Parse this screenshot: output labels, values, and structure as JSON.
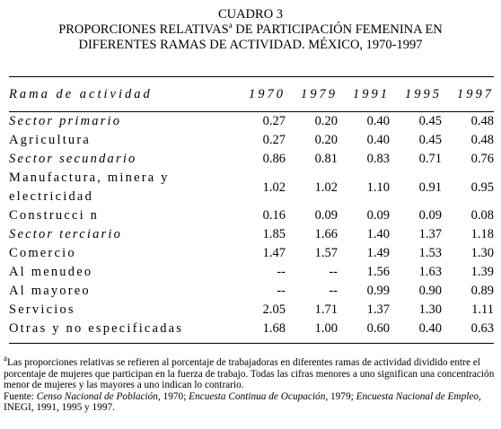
{
  "header": {
    "label": "CUADRO 3",
    "title_line2": [
      "PROPORCIONES RELATIVAS",
      "a",
      " DE PARTICIPACIÓN FEMENINA EN"
    ],
    "title_line3": "DIFERENTES RAMAS DE ACTIVIDAD. MÉXICO, 1970-1997"
  },
  "table": {
    "columns": [
      "Rama de actividad",
      "1970",
      "1979",
      "1991",
      "1995",
      "1997"
    ],
    "rows": [
      {
        "label": "Sector primario",
        "values": [
          "0.27",
          "0.20",
          "0.40",
          "0.45",
          "0.48"
        ]
      },
      {
        "label": "Agricultura",
        "values": [
          "0.27",
          "0.20",
          "0.40",
          "0.45",
          "0.48"
        ]
      },
      {
        "label": "Sector secundario",
        "values": [
          "0.86",
          "0.81",
          "0.83",
          "0.71",
          "0.76"
        ]
      },
      {
        "label": [
          "Manufactura, minera y",
          "electricidad"
        ],
        "values": [
          "1.02",
          "1.02",
          "1.10",
          "0.91",
          "0.95"
        ]
      },
      {
        "label": "Construcci n",
        "values": [
          "0.16",
          "0.09",
          "0.09",
          "0.09",
          "0.08"
        ]
      },
      {
        "label": "Sector terciario",
        "values": [
          "1.85",
          "1.66",
          "1.40",
          "1.37",
          "1.18"
        ]
      },
      {
        "label": "Comercio",
        "values": [
          "1.47",
          "1.57",
          "1.49",
          "1.53",
          "1.30"
        ]
      },
      {
        "label": "Al menudeo",
        "values": [
          "--",
          "--",
          "1.56",
          "1.63",
          "1.39"
        ]
      },
      {
        "label": "Al mayoreo",
        "values": [
          "--",
          "--",
          "0.99",
          "0.90",
          "0.89"
        ]
      },
      {
        "label": "Servicios",
        "values": [
          "2.05",
          "1.71",
          "1.37",
          "1.30",
          "1.11"
        ]
      },
      {
        "label": "Otras y no especificadas",
        "values": [
          "1.68",
          "1.00",
          "0.60",
          "0.40",
          "0.63"
        ]
      }
    ]
  },
  "footnote": {
    "marker": "a",
    "text": "Las proporciones relativas se refieren al porcentaje de trabajadoras en diferentes ramas de actividad dividido entre el porcentaje de mujeres que participan en la fuerza de trabajo. Todas las cifras menores a uno significan una concentración menor de mujeres y las mayores a uno indican lo contrario."
  },
  "source": [
    "Fuente: ",
    "Censo Nacional de Población",
    ", 1970; ",
    "Encuesta Continua de Ocupación",
    ", 1979; ",
    "Encuesta Nacional de Empleo",
    ", INEGI, 1991, 1995 y 1997."
  ]
}
